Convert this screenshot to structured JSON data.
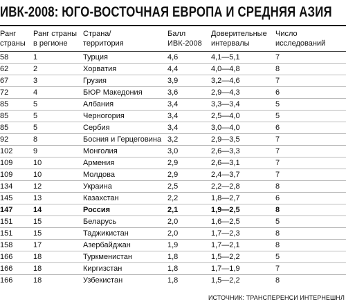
{
  "title": "ИВК-2008: ЮГО-ВОСТОЧНАЯ ЕВРОПА И СРЕДНЯЯ АЗИЯ",
  "table": {
    "columns": [
      [
        "Ранг",
        "страны"
      ],
      [
        "Ранг страны",
        "в регионе"
      ],
      [
        "Страна/",
        "территория"
      ],
      [
        "Балл",
        "ИВК-2008"
      ],
      [
        "Доверительные",
        "интервалы"
      ],
      [
        "Число исследований"
      ]
    ],
    "rows": [
      [
        "58",
        "1",
        "Турция",
        "4,6",
        "4,1—5,1",
        "7"
      ],
      [
        "62",
        "2",
        "Хорватия",
        "4,4",
        "4,0—4,8",
        "8"
      ],
      [
        "67",
        "3",
        "Грузия",
        "3,9",
        "3,2—4,6",
        "7"
      ],
      [
        "72",
        "4",
        "БЮР Македония",
        "3,6",
        "2,9—4,3",
        "6"
      ],
      [
        "85",
        "5",
        "Албания",
        "3,4",
        "3,3—3,4",
        "5"
      ],
      [
        "85",
        "5",
        "Черногория",
        "3,4",
        "2,5—4,0",
        "5"
      ],
      [
        "85",
        "5",
        "Сербия",
        "3,4",
        "3,0—4,0",
        "6"
      ],
      [
        "92",
        "8",
        "Босния и Герцеговина",
        "3,2",
        "2,9—3,5",
        "7"
      ],
      [
        "102",
        "9",
        "Монголия",
        "3,0",
        "2,6—3,3",
        "7"
      ],
      [
        "109",
        "10",
        "Армения",
        "2,9",
        "2,6—3,1",
        "7"
      ],
      [
        "109",
        "10",
        "Молдова",
        "2,9",
        "2,4—3,7",
        "7"
      ],
      [
        "134",
        "12",
        "Украина",
        "2,5",
        "2,2—2,8",
        "8"
      ],
      [
        "145",
        "13",
        "Казахстан",
        "2,2",
        "1,8—2,7",
        "6"
      ],
      [
        "147",
        "14",
        "Россия",
        "2,1",
        "1,9—2,5",
        "8"
      ],
      [
        "151",
        "15",
        "Беларусь",
        "2,0",
        "1,6—2,5",
        "5"
      ],
      [
        "151",
        "15",
        "Таджикистан",
        "2,0",
        "1,7—2,3",
        "8"
      ],
      [
        "158",
        "17",
        "Азербайджан",
        "1,9",
        "1,7—2,1",
        "8"
      ],
      [
        "166",
        "18",
        "Туркменистан",
        "1,8",
        "1,5—2,2",
        "5"
      ],
      [
        "166",
        "18",
        "Киргизстан",
        "1,8",
        "1,7—1,9",
        "7"
      ],
      [
        "166",
        "18",
        "Узбекистан",
        "1,8",
        "1,5—2,2",
        "8"
      ]
    ]
  },
  "source": "ИСТОЧНИК: ТРАНСПЕРЕНСИ ИНТЕРНЕШНЛ"
}
